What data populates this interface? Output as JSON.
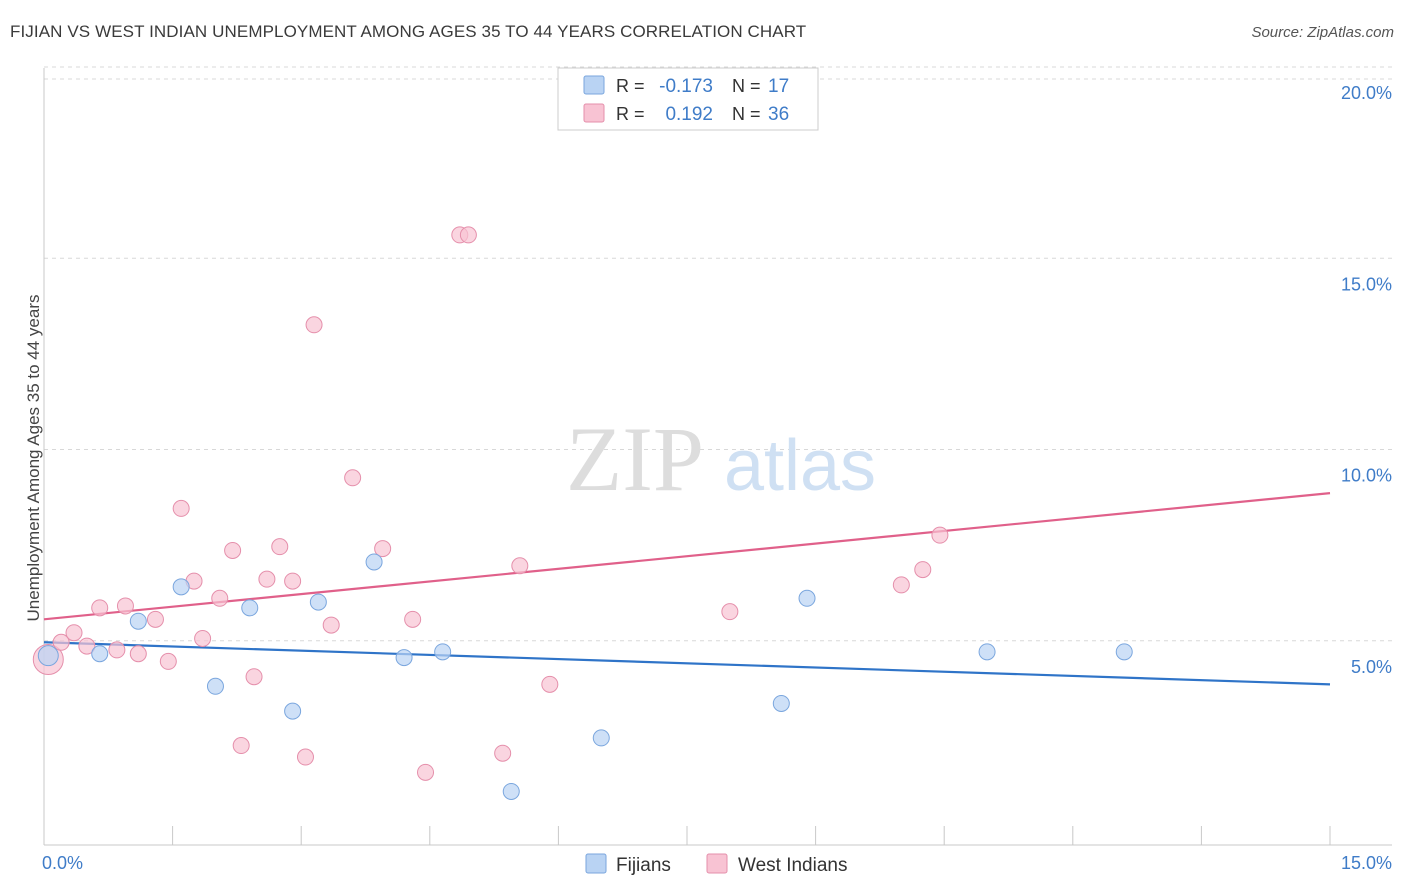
{
  "title": "FIJIAN VS WEST INDIAN UNEMPLOYMENT AMONG AGES 35 TO 44 YEARS CORRELATION CHART",
  "source": "Source: ZipAtlas.com",
  "watermark": {
    "zip": "ZIP",
    "atlas": "atlas"
  },
  "colors": {
    "fijians_fill": "#b9d3f3",
    "fijians_stroke": "#7aa6de",
    "fijians_line": "#2f74c8",
    "west_indians_fill": "#f8c3d3",
    "west_indians_stroke": "#e58fab",
    "west_indians_line": "#e0608a",
    "tick_label": "#3f7cc8",
    "grid": "#d8d8d8"
  },
  "legend_stats": [
    {
      "series": "fijians",
      "r_label": "R =",
      "r_value": "-0.173",
      "n_label": "N =",
      "n_value": "17"
    },
    {
      "series": "west_indians",
      "r_label": "R =",
      "r_value": "0.192",
      "n_label": "N =",
      "n_value": "36"
    }
  ],
  "chart_data": {
    "type": "scatter",
    "title": "FIJIAN VS WEST INDIAN UNEMPLOYMENT AMONG AGES 35 TO 44 YEARS CORRELATION CHART",
    "xlabel": "",
    "ylabel": "Unemployment Among Ages 35 to 44 years",
    "xlim": [
      0,
      15
    ],
    "ylim": [
      0,
      20
    ],
    "x_tick_labels": [
      "0.0%",
      "15.0%"
    ],
    "y_ticks": [
      5,
      10,
      15,
      20
    ],
    "y_tick_labels": [
      "5.0%",
      "10.0%",
      "15.0%",
      "20.0%"
    ],
    "legend_position": "bottom-center",
    "series": [
      {
        "key": "fijians",
        "name": "Fijians",
        "r": -0.173,
        "n": 17,
        "trend": {
          "x0": 0,
          "y0": 5.3,
          "x1": 15,
          "y1": 4.2
        },
        "points": [
          {
            "x": 0.05,
            "y": 4.95
          },
          {
            "x": 0.65,
            "y": 5.0
          },
          {
            "x": 1.1,
            "y": 5.85
          },
          {
            "x": 1.6,
            "y": 6.75
          },
          {
            "x": 2.0,
            "y": 4.15
          },
          {
            "x": 2.4,
            "y": 6.2
          },
          {
            "x": 2.9,
            "y": 3.5
          },
          {
            "x": 3.2,
            "y": 6.35
          },
          {
            "x": 3.85,
            "y": 7.4
          },
          {
            "x": 4.2,
            "y": 4.9
          },
          {
            "x": 4.65,
            "y": 5.05
          },
          {
            "x": 5.45,
            "y": 1.4
          },
          {
            "x": 6.5,
            "y": 2.8
          },
          {
            "x": 8.6,
            "y": 3.7
          },
          {
            "x": 8.9,
            "y": 6.45
          },
          {
            "x": 11.0,
            "y": 5.05
          },
          {
            "x": 12.6,
            "y": 5.05
          }
        ]
      },
      {
        "key": "west_indians",
        "name": "West Indians",
        "r": 0.192,
        "n": 36,
        "trend": {
          "x0": 0,
          "y0": 5.9,
          "x1": 15,
          "y1": 9.2
        },
        "points": [
          {
            "x": 0.05,
            "y": 4.85
          },
          {
            "x": 0.2,
            "y": 5.3
          },
          {
            "x": 0.35,
            "y": 5.55
          },
          {
            "x": 0.5,
            "y": 5.2
          },
          {
            "x": 0.65,
            "y": 6.2
          },
          {
            "x": 0.85,
            "y": 5.1
          },
          {
            "x": 0.95,
            "y": 6.25
          },
          {
            "x": 1.1,
            "y": 5.0
          },
          {
            "x": 1.3,
            "y": 5.9
          },
          {
            "x": 1.45,
            "y": 4.8
          },
          {
            "x": 1.6,
            "y": 8.8
          },
          {
            "x": 1.75,
            "y": 6.9
          },
          {
            "x": 1.85,
            "y": 5.4
          },
          {
            "x": 2.05,
            "y": 6.45
          },
          {
            "x": 2.2,
            "y": 7.7
          },
          {
            "x": 2.3,
            "y": 2.6
          },
          {
            "x": 2.45,
            "y": 4.4
          },
          {
            "x": 2.6,
            "y": 6.95
          },
          {
            "x": 2.75,
            "y": 7.8
          },
          {
            "x": 2.9,
            "y": 6.9
          },
          {
            "x": 3.05,
            "y": 2.3
          },
          {
            "x": 3.15,
            "y": 13.6
          },
          {
            "x": 3.35,
            "y": 5.75
          },
          {
            "x": 3.6,
            "y": 9.6
          },
          {
            "x": 3.95,
            "y": 7.75
          },
          {
            "x": 4.3,
            "y": 5.9
          },
          {
            "x": 4.45,
            "y": 1.9
          },
          {
            "x": 4.85,
            "y": 15.95
          },
          {
            "x": 4.95,
            "y": 15.95
          },
          {
            "x": 5.35,
            "y": 2.4
          },
          {
            "x": 5.55,
            "y": 7.3
          },
          {
            "x": 5.9,
            "y": 4.2
          },
          {
            "x": 8.0,
            "y": 6.1
          },
          {
            "x": 10.0,
            "y": 6.8
          },
          {
            "x": 10.25,
            "y": 7.2
          },
          {
            "x": 10.45,
            "y": 8.1
          }
        ]
      }
    ]
  }
}
